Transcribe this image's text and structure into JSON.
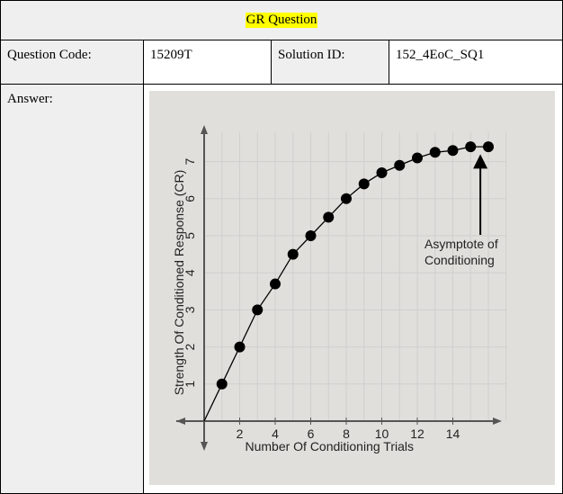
{
  "header": {
    "title": "GR Question"
  },
  "info_row": {
    "question_code_label": "Question Code:",
    "question_code_value": "15209T",
    "solution_id_label": "Solution ID:",
    "solution_id_value": "152_4EoC_SQ1"
  },
  "answer": {
    "label": "Answer:"
  },
  "colors": {
    "title_highlight": "#ffff00",
    "chart_background": "#e1dfdb",
    "marker": "#000000",
    "axis": "#555555",
    "grid": "#cfcfcf"
  },
  "chart_data": {
    "type": "line",
    "title": "",
    "xlabel": "Number Of Conditioning Trials",
    "ylabel": "Strength Of Conditioned Response (CR)",
    "xlim": [
      0,
      17
    ],
    "ylim": [
      0,
      8
    ],
    "x_ticks": [
      2,
      4,
      6,
      8,
      10,
      12,
      14
    ],
    "y_ticks": [
      1,
      2,
      3,
      4,
      5,
      6,
      7
    ],
    "grid": true,
    "series": [
      {
        "x": [
          0,
          1,
          2,
          3,
          4,
          5,
          6,
          7,
          8,
          9,
          10,
          11,
          12,
          13,
          14,
          15,
          16
        ],
        "y": [
          0,
          1.0,
          2.0,
          3.0,
          3.7,
          4.5,
          5.0,
          5.5,
          6.0,
          6.4,
          6.7,
          6.9,
          7.1,
          7.25,
          7.3,
          7.4,
          7.4
        ]
      }
    ],
    "annotation": {
      "text_line1": "Asymptote of",
      "text_line2": "Conditioning",
      "arrow_target_x": 15.5,
      "arrow_target_y": 7.2
    }
  }
}
